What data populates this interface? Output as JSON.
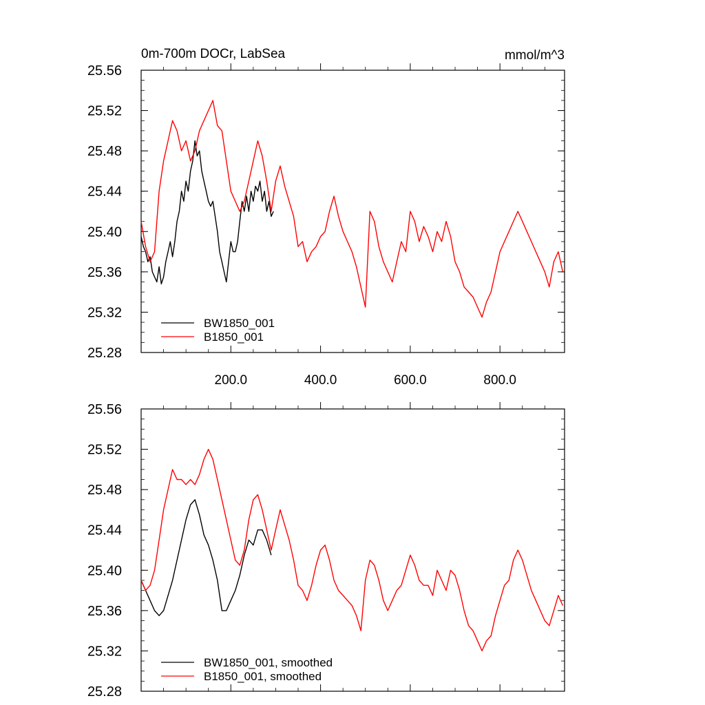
{
  "chart_data": [
    {
      "type": "line",
      "title_left": "0m-700m DOCr, LabSea",
      "title_right": "mmol/m^3",
      "xlim": [
        0,
        944
      ],
      "ylim": [
        25.28,
        25.56
      ],
      "ytick_labels": [
        "25.28",
        "25.32",
        "25.36",
        "25.40",
        "25.44",
        "25.48",
        "25.52",
        "25.56"
      ],
      "xtick_labels": [
        "200.0",
        "400.0",
        "600.0",
        "800.0"
      ],
      "grid": false,
      "legend_position": "bottom-left",
      "series": [
        {
          "name": "BW1850_001",
          "color": "#000000",
          "x": [
            0,
            5,
            10,
            15,
            20,
            25,
            30,
            35,
            40,
            45,
            50,
            55,
            60,
            65,
            70,
            75,
            80,
            85,
            90,
            95,
            100,
            105,
            110,
            115,
            120,
            125,
            130,
            135,
            140,
            145,
            150,
            155,
            160,
            165,
            170,
            175,
            180,
            185,
            190,
            195,
            200,
            205,
            210,
            215,
            220,
            225,
            230,
            235,
            240,
            245,
            250,
            255,
            260,
            265,
            270,
            275,
            280,
            285,
            290,
            295
          ],
          "values": [
            25.395,
            25.385,
            25.38,
            25.37,
            25.375,
            25.36,
            25.355,
            25.35,
            25.365,
            25.348,
            25.355,
            25.37,
            25.38,
            25.39,
            25.375,
            25.39,
            25.41,
            25.42,
            25.44,
            25.43,
            25.45,
            25.44,
            25.46,
            25.47,
            25.49,
            25.475,
            25.48,
            25.46,
            25.45,
            25.44,
            25.43,
            25.425,
            25.43,
            25.415,
            25.4,
            25.38,
            25.37,
            25.36,
            25.35,
            25.37,
            25.39,
            25.38,
            25.38,
            25.39,
            25.41,
            25.43,
            25.42,
            25.435,
            25.42,
            25.44,
            25.43,
            25.445,
            25.44,
            25.45,
            25.43,
            25.44,
            25.42,
            25.43,
            25.415,
            25.42
          ]
        },
        {
          "name": "B1850_001",
          "color": "#ff0000",
          "x": [
            0,
            10,
            20,
            30,
            40,
            50,
            60,
            70,
            80,
            90,
            100,
            110,
            120,
            130,
            140,
            150,
            160,
            170,
            180,
            190,
            200,
            210,
            220,
            230,
            240,
            250,
            260,
            270,
            280,
            290,
            300,
            310,
            320,
            330,
            340,
            350,
            360,
            370,
            380,
            390,
            400,
            410,
            420,
            430,
            440,
            450,
            460,
            470,
            480,
            490,
            500,
            510,
            520,
            530,
            540,
            550,
            560,
            570,
            580,
            590,
            600,
            610,
            620,
            630,
            640,
            650,
            660,
            670,
            680,
            690,
            700,
            710,
            720,
            730,
            740,
            750,
            760,
            770,
            780,
            790,
            800,
            810,
            820,
            830,
            840,
            850,
            860,
            870,
            880,
            890,
            900,
            910,
            920,
            930,
            940
          ],
          "values": [
            25.41,
            25.385,
            25.37,
            25.38,
            25.44,
            25.47,
            25.49,
            25.51,
            25.5,
            25.48,
            25.49,
            25.47,
            25.48,
            25.5,
            25.51,
            25.52,
            25.53,
            25.505,
            25.5,
            25.47,
            25.44,
            25.43,
            25.42,
            25.43,
            25.45,
            25.47,
            25.49,
            25.475,
            25.45,
            25.42,
            25.45,
            25.465,
            25.445,
            25.43,
            25.415,
            25.385,
            25.39,
            25.37,
            25.38,
            25.385,
            25.395,
            25.4,
            25.42,
            25.435,
            25.415,
            25.4,
            25.39,
            25.38,
            25.365,
            25.345,
            25.325,
            25.42,
            25.41,
            25.385,
            25.37,
            25.36,
            25.35,
            25.37,
            25.39,
            25.38,
            25.42,
            25.41,
            25.39,
            25.405,
            25.395,
            25.38,
            25.4,
            25.39,
            25.41,
            25.395,
            25.37,
            25.36,
            25.345,
            25.34,
            25.335,
            25.325,
            25.315,
            25.33,
            25.34,
            25.36,
            25.38,
            25.39,
            25.4,
            25.41,
            25.42,
            25.41,
            25.4,
            25.39,
            25.38,
            25.37,
            25.36,
            25.345,
            25.37,
            25.38,
            25.36
          ]
        }
      ]
    },
    {
      "type": "line",
      "xlim": [
        0,
        944
      ],
      "ylim": [
        25.28,
        25.56
      ],
      "ytick_labels": [
        "25.28",
        "25.32",
        "25.36",
        "25.40",
        "25.44",
        "25.48",
        "25.52",
        "25.56"
      ],
      "grid": false,
      "legend_position": "bottom-left",
      "series": [
        {
          "name": "BW1850_001, smoothed",
          "color": "#000000",
          "x": [
            0,
            10,
            20,
            30,
            40,
            50,
            60,
            70,
            80,
            90,
            100,
            110,
            120,
            130,
            140,
            150,
            160,
            170,
            180,
            190,
            200,
            210,
            220,
            230,
            240,
            250,
            260,
            270,
            280,
            290
          ],
          "values": [
            25.39,
            25.38,
            25.37,
            25.36,
            25.355,
            25.36,
            25.375,
            25.39,
            25.41,
            25.43,
            25.45,
            25.465,
            25.47,
            25.455,
            25.435,
            25.425,
            25.41,
            25.39,
            25.36,
            25.36,
            25.37,
            25.38,
            25.395,
            25.415,
            25.43,
            25.425,
            25.44,
            25.44,
            25.43,
            25.415
          ]
        },
        {
          "name": "B1850_001, smoothed",
          "color": "#ff0000",
          "x": [
            0,
            10,
            20,
            30,
            40,
            50,
            60,
            70,
            80,
            90,
            100,
            110,
            120,
            130,
            140,
            150,
            160,
            170,
            180,
            190,
            200,
            210,
            220,
            230,
            240,
            250,
            260,
            270,
            280,
            290,
            300,
            310,
            320,
            330,
            340,
            350,
            360,
            370,
            380,
            390,
            400,
            410,
            420,
            430,
            440,
            450,
            460,
            470,
            480,
            490,
            500,
            510,
            520,
            530,
            540,
            550,
            560,
            570,
            580,
            590,
            600,
            610,
            620,
            630,
            640,
            650,
            660,
            670,
            680,
            690,
            700,
            710,
            720,
            730,
            740,
            750,
            760,
            770,
            780,
            790,
            800,
            810,
            820,
            830,
            840,
            850,
            860,
            870,
            880,
            890,
            900,
            910,
            920,
            930,
            940
          ],
          "values": [
            25.39,
            25.38,
            25.385,
            25.4,
            25.43,
            25.46,
            25.48,
            25.5,
            25.49,
            25.49,
            25.485,
            25.49,
            25.485,
            25.495,
            25.51,
            25.52,
            25.51,
            25.49,
            25.47,
            25.45,
            25.43,
            25.41,
            25.405,
            25.42,
            25.45,
            25.47,
            25.475,
            25.46,
            25.44,
            25.42,
            25.44,
            25.46,
            25.445,
            25.43,
            25.41,
            25.385,
            25.38,
            25.37,
            25.385,
            25.405,
            25.42,
            25.425,
            25.41,
            25.39,
            25.38,
            25.375,
            25.37,
            25.365,
            25.355,
            25.34,
            25.39,
            25.41,
            25.405,
            25.39,
            25.37,
            25.36,
            25.37,
            25.38,
            25.385,
            25.4,
            25.415,
            25.405,
            25.39,
            25.385,
            25.385,
            25.375,
            25.4,
            25.39,
            25.38,
            25.4,
            25.395,
            25.38,
            25.36,
            25.345,
            25.34,
            25.33,
            25.32,
            25.33,
            25.335,
            25.355,
            25.37,
            25.385,
            25.39,
            25.41,
            25.42,
            25.41,
            25.395,
            25.38,
            25.37,
            25.36,
            25.35,
            25.345,
            25.36,
            25.375,
            25.365
          ]
        }
      ]
    }
  ]
}
